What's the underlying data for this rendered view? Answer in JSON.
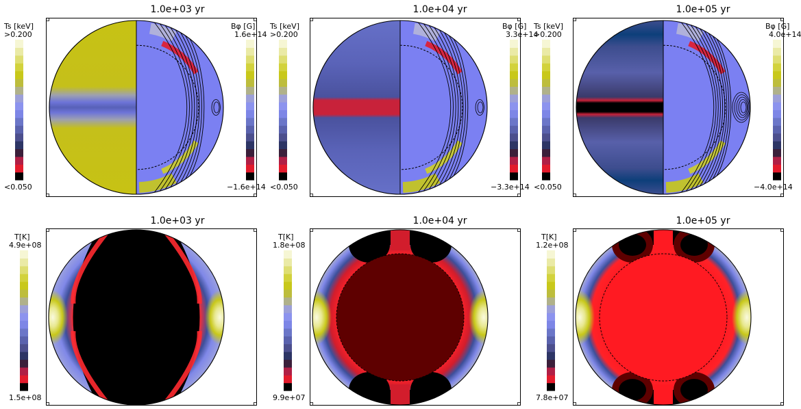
{
  "top_row": [
    {
      "title": "1.0e+03 yr",
      "left_bar": {
        "label": "Ts [keV]",
        "max": ">0.200",
        "min": "<0.050"
      },
      "right_bar": {
        "label": "Bφ [G]",
        "max": "1.6e+14",
        "min": "−1.6e+14"
      },
      "left_hemisphere": "olive-with-blue-equatorial-band"
    },
    {
      "title": "1.0e+04 yr",
      "left_bar": {
        "label": "Ts [keV]",
        "max": ">0.200",
        "min": "<0.050"
      },
      "right_bar": {
        "label": "Bφ [G]",
        "max": "3.3e+14",
        "min": "−3.3e+14"
      },
      "left_hemisphere": "blue-with-red-equatorial-band"
    },
    {
      "title": "1.0e+05 yr",
      "left_bar": {
        "label": "Ts [keV]",
        "max": ">0.200",
        "min": "<0.050"
      },
      "right_bar": {
        "label": "Bφ [G]",
        "max": "4.0e+14",
        "min": "−4.0e+14"
      },
      "left_hemisphere": "dark-blue-with-black-equatorial-band"
    }
  ],
  "bottom_row": [
    {
      "title": "1.0e+03 yr",
      "bar": {
        "label": "T[K]",
        "max": "4.9e+08",
        "min": "1.5e+08"
      },
      "core_color": "#000000"
    },
    {
      "title": "1.0e+04 yr",
      "bar": {
        "label": "T[K]",
        "max": "1.8e+08",
        "min": "9.9e+07"
      },
      "core_color": "#5e0000"
    },
    {
      "title": "1.0e+05 yr",
      "bar": {
        "label": "T[K]",
        "max": "1.2e+08",
        "min": "7.8e+07"
      },
      "core_color": "#ff1a22"
    }
  ],
  "colormap": [
    "#000000",
    "#e21b2c",
    "#b01f45",
    "#3b1f3a",
    "#2d3565",
    "#4c4f8d",
    "#5a62ad",
    "#6b76c8",
    "#7d86e6",
    "#8c93ee",
    "#9da0d8",
    "#b0b18a",
    "#bdbd3c",
    "#c8c81a",
    "#d2d23c",
    "#dede72",
    "#eaeaa6",
    "#f6f6d4"
  ],
  "colors": {
    "olive": "#c4be1c",
    "blue": "#7b80f2",
    "red": "#c8223a",
    "dark_blue": "#3a4a8a"
  }
}
